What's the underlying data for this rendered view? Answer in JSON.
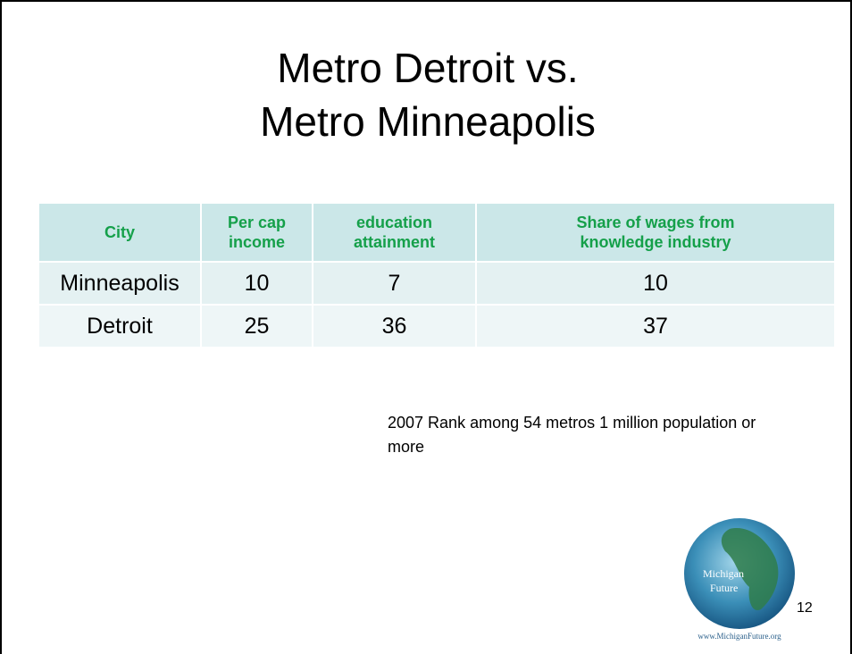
{
  "title": [
    "Metro Detroit vs.",
    "Metro Minneapolis"
  ],
  "table": {
    "header": [
      "City",
      "Per cap income",
      "education attainment",
      "Share of wages from knowledge industry"
    ],
    "rows": [
      [
        "Minneapolis",
        10,
        7,
        10
      ],
      [
        "Detroit",
        25,
        36,
        37
      ]
    ]
  },
  "note": "2007 Rank among 54 metros 1 million population or more",
  "logo": {
    "name": [
      "Michigan",
      "Future"
    ],
    "url": "www.MichiganFuture.org"
  },
  "page_number": "12"
}
